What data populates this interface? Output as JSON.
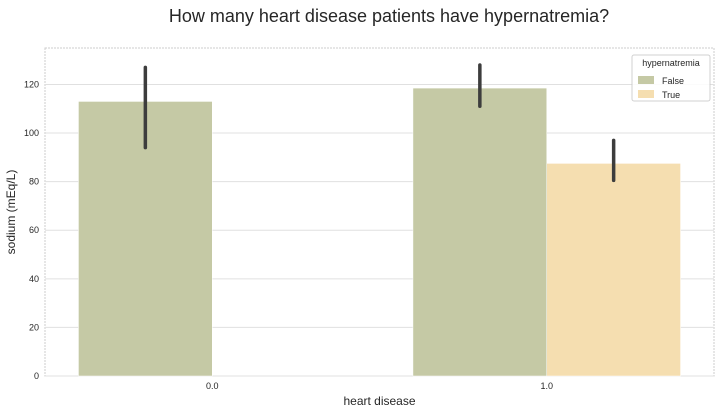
{
  "chart_data": {
    "type": "bar",
    "title": "How many heart disease patients have hypernatremia?",
    "xlabel": "heart disease",
    "ylabel": "sodium (mEq/L)",
    "categories": [
      "0.0",
      "1.0"
    ],
    "ylim": [
      0,
      135
    ],
    "yticks": [
      0,
      20,
      40,
      60,
      80,
      100,
      120
    ],
    "grid": "horizontal",
    "legend": {
      "title": "hypernatremia",
      "placement": "top-right"
    },
    "series": [
      {
        "name": "False",
        "color": "#c5c9a5",
        "values": [
          113,
          118.5
        ],
        "error_low": [
          94,
          111
        ],
        "error_high": [
          127,
          128
        ]
      },
      {
        "name": "True",
        "color": "#f5deb0",
        "values": [
          null,
          87.5
        ],
        "error_low": [
          null,
          80.5
        ],
        "error_high": [
          null,
          97
        ]
      }
    ]
  }
}
